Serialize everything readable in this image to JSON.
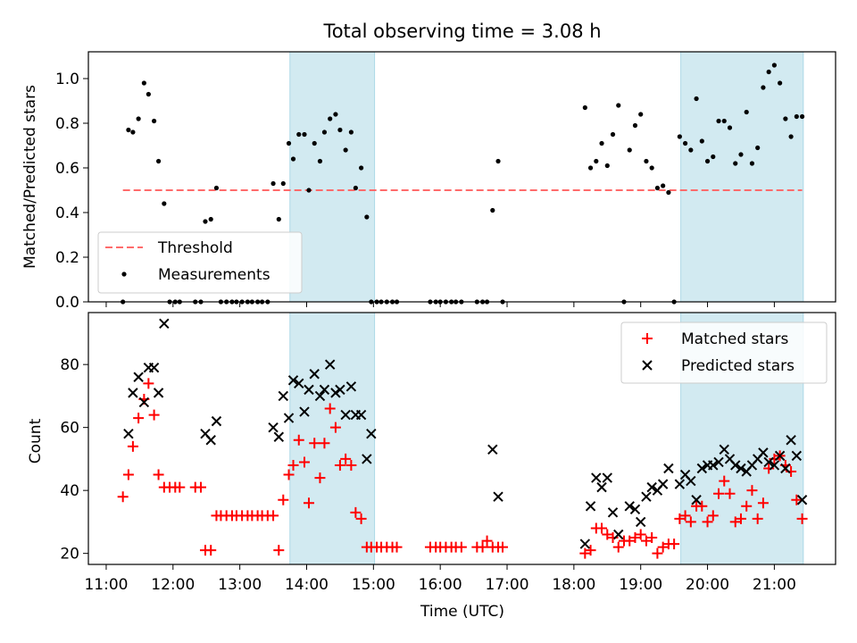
{
  "title": "Total observing time = 3.08 h",
  "colors": {
    "shade": "#add8e6",
    "threshold": "#ff6b6b",
    "measurement": "#000000",
    "matched": "#ff0000",
    "predicted": "#000000"
  },
  "chart_data": [
    {
      "type": "scatter",
      "ylabel": "Matched/Predicted stars",
      "ylim": [
        0,
        1.12
      ],
      "yticks": [
        "0.0",
        "0.2",
        "0.4",
        "0.6",
        "0.8",
        "1.0"
      ],
      "legend_position": "lower-left",
      "threshold": {
        "name": "Threshold",
        "value": 0.5,
        "x_range": [
          "11:15",
          "21:25"
        ]
      },
      "shaded_intervals": [
        [
          "13:45",
          "15:01"
        ],
        [
          "19:36",
          "21:26"
        ]
      ],
      "series": [
        {
          "name": "Measurements",
          "x": [
            "11:15",
            "11:20",
            "11:24",
            "11:29",
            "11:34",
            "11:38",
            "11:43",
            "11:47",
            "11:52",
            "11:57",
            "12:02",
            "12:06",
            "12:20",
            "12:25",
            "12:29",
            "12:34",
            "12:39",
            "12:43",
            "12:48",
            "12:53",
            "12:57",
            "13:02",
            "13:07",
            "13:11",
            "13:16",
            "13:20",
            "13:25",
            "13:30",
            "13:35",
            "13:39",
            "13:44",
            "13:48",
            "13:53",
            "13:58",
            "14:02",
            "14:07",
            "14:12",
            "14:16",
            "14:21",
            "14:26",
            "14:30",
            "14:35",
            "14:40",
            "14:44",
            "14:49",
            "14:54",
            "14:58",
            "15:03",
            "15:07",
            "15:12",
            "15:17",
            "15:21",
            "15:51",
            "15:56",
            "16:00",
            "16:05",
            "16:10",
            "16:14",
            "16:19",
            "16:33",
            "16:38",
            "16:42",
            "16:47",
            "16:52",
            "16:56",
            "18:10",
            "18:15",
            "18:20",
            "18:25",
            "18:30",
            "18:35",
            "18:40",
            "18:45",
            "18:50",
            "18:55",
            "19:00",
            "19:05",
            "19:10",
            "19:15",
            "19:20",
            "19:25",
            "19:30",
            "19:35",
            "19:40",
            "19:45",
            "19:50",
            "19:55",
            "20:00",
            "20:05",
            "20:10",
            "20:15",
            "20:20",
            "20:25",
            "20:30",
            "20:35",
            "20:40",
            "20:45",
            "20:50",
            "20:55",
            "21:00",
            "21:05",
            "21:10",
            "21:15",
            "21:20",
            "21:25"
          ],
          "y": [
            0.0,
            0.77,
            0.76,
            0.82,
            0.98,
            0.93,
            0.81,
            0.63,
            0.44,
            0.0,
            0.0,
            0.0,
            0.0,
            0.0,
            0.36,
            0.37,
            0.51,
            0.0,
            0.0,
            0.0,
            0.0,
            0.0,
            0.0,
            0.0,
            0.0,
            0.0,
            0.0,
            0.53,
            0.37,
            0.53,
            0.71,
            0.64,
            0.75,
            0.75,
            0.5,
            0.71,
            0.63,
            0.76,
            0.82,
            0.84,
            0.77,
            0.68,
            0.76,
            0.51,
            0.6,
            0.38,
            0.0,
            0.0,
            0.0,
            0.0,
            0.0,
            0.0,
            0.0,
            0.0,
            0.0,
            0.0,
            0.0,
            0.0,
            0.0,
            0.0,
            0.0,
            0.0,
            0.41,
            0.63,
            0.0,
            0.87,
            0.6,
            0.63,
            0.71,
            0.61,
            0.75,
            0.88,
            0.0,
            0.68,
            0.79,
            0.84,
            0.63,
            0.6,
            0.51,
            0.52,
            0.49,
            0.0,
            0.74,
            0.71,
            0.68,
            0.91,
            0.72,
            0.63,
            0.65,
            0.81,
            0.81,
            0.78,
            0.62,
            0.66,
            0.85,
            0.62,
            0.69,
            0.96,
            1.03,
            1.06,
            0.98,
            0.82,
            0.74,
            0.83,
            0.83
          ]
        }
      ]
    },
    {
      "type": "scatter",
      "ylabel": "Count",
      "xlabel": "Time (UTC)",
      "ylim": [
        16.5,
        96.5
      ],
      "yticks": [
        "20",
        "40",
        "60",
        "80"
      ],
      "xticks": [
        "11:00",
        "12:00",
        "13:00",
        "14:00",
        "15:00",
        "16:00",
        "17:00",
        "18:00",
        "19:00",
        "20:00",
        "21:00"
      ],
      "xlim": [
        "10:44",
        "21:55"
      ],
      "legend_position": "upper-right",
      "shaded_intervals": [
        [
          "13:45",
          "15:01"
        ],
        [
          "19:36",
          "21:26"
        ]
      ],
      "series": [
        {
          "name": "Matched stars",
          "x": [
            "11:15",
            "11:20",
            "11:24",
            "11:29",
            "11:34",
            "11:38",
            "11:43",
            "11:47",
            "11:52",
            "11:57",
            "12:02",
            "12:06",
            "12:20",
            "12:25",
            "12:29",
            "12:34",
            "12:39",
            "12:43",
            "12:48",
            "12:53",
            "12:57",
            "13:02",
            "13:07",
            "13:11",
            "13:16",
            "13:20",
            "13:25",
            "13:30",
            "13:35",
            "13:39",
            "13:44",
            "13:48",
            "13:53",
            "13:58",
            "14:02",
            "14:07",
            "14:12",
            "14:16",
            "14:21",
            "14:26",
            "14:30",
            "14:35",
            "14:40",
            "14:44",
            "14:49",
            "14:54",
            "14:58",
            "15:03",
            "15:07",
            "15:12",
            "15:17",
            "15:21",
            "15:51",
            "15:56",
            "16:00",
            "16:05",
            "16:10",
            "16:14",
            "16:19",
            "16:33",
            "16:38",
            "16:42",
            "16:47",
            "16:52",
            "16:56",
            "18:10",
            "18:15",
            "18:20",
            "18:25",
            "18:30",
            "18:35",
            "18:40",
            "18:45",
            "18:50",
            "18:55",
            "19:00",
            "19:05",
            "19:10",
            "19:15",
            "19:20",
            "19:25",
            "19:30",
            "19:35",
            "19:40",
            "19:45",
            "19:50",
            "19:55",
            "20:00",
            "20:05",
            "20:10",
            "20:15",
            "20:20",
            "20:25",
            "20:30",
            "20:35",
            "20:40",
            "20:45",
            "20:50",
            "20:55",
            "21:00",
            "21:05",
            "21:10",
            "21:15",
            "21:20",
            "21:25"
          ],
          "y": [
            38,
            45,
            54,
            63,
            69,
            74,
            64,
            45,
            41,
            41,
            41,
            41,
            41,
            41,
            21,
            21,
            32,
            32,
            32,
            32,
            32,
            32,
            32,
            32,
            32,
            32,
            32,
            32,
            21,
            37,
            45,
            48,
            56,
            49,
            36,
            55,
            44,
            55,
            66,
            60,
            48,
            50,
            48,
            33,
            31,
            22,
            22,
            22,
            22,
            22,
            22,
            22,
            22,
            22,
            22,
            22,
            22,
            22,
            22,
            22,
            22,
            24,
            22,
            22,
            22,
            20,
            21,
            28,
            28,
            26,
            25,
            22,
            24,
            24,
            25,
            26,
            24,
            25,
            20,
            22,
            23,
            23,
            31,
            32,
            30,
            35,
            35,
            30,
            32,
            39,
            43,
            39,
            30,
            31,
            35,
            40,
            31,
            36,
            47,
            50,
            51,
            48,
            46,
            37,
            31
          ]
        },
        {
          "name": "Predicted stars",
          "x": [
            "11:15",
            "11:20",
            "11:24",
            "11:29",
            "11:34",
            "11:38",
            "11:43",
            "11:47",
            "11:52",
            "11:57",
            "12:02",
            "12:06",
            "12:20",
            "12:25",
            "12:29",
            "12:34",
            "12:39",
            "12:43",
            "12:48",
            "12:53",
            "12:57",
            "13:02",
            "13:07",
            "13:11",
            "13:16",
            "13:20",
            "13:25",
            "13:30",
            "13:35",
            "13:39",
            "13:44",
            "13:48",
            "13:53",
            "13:58",
            "14:02",
            "14:07",
            "14:12",
            "14:16",
            "14:21",
            "14:26",
            "14:30",
            "14:35",
            "14:40",
            "14:44",
            "14:49",
            "14:54",
            "14:58",
            "15:03",
            "15:07",
            "15:12",
            "15:17",
            "15:21",
            "15:51",
            "15:56",
            "16:00",
            "16:05",
            "16:10",
            "16:14",
            "16:19",
            "16:33",
            "16:38",
            "16:42",
            "16:47",
            "16:52",
            "16:56",
            "18:10",
            "18:15",
            "18:20",
            "18:25",
            "18:30",
            "18:35",
            "18:40",
            "18:45",
            "18:50",
            "18:55",
            "19:00",
            "19:05",
            "19:10",
            "19:15",
            "19:20",
            "19:25",
            "19:30",
            "19:35",
            "19:40",
            "19:45",
            "19:50",
            "19:55",
            "20:00",
            "20:05",
            "20:10",
            "20:15",
            "20:20",
            "20:25",
            "20:30",
            "20:35",
            "20:40",
            "20:45",
            "20:50",
            "20:55",
            "21:00",
            "21:05",
            "21:10",
            "21:15",
            "21:20",
            "21:25"
          ],
          "y": [
            null,
            58,
            71,
            76,
            68,
            79,
            79,
            71,
            93,
            null,
            null,
            null,
            null,
            null,
            58,
            56,
            62,
            null,
            null,
            null,
            null,
            null,
            null,
            null,
            null,
            null,
            null,
            60,
            57,
            70,
            63,
            75,
            74,
            65,
            72,
            77,
            70,
            72,
            80,
            71,
            72,
            64,
            73,
            64,
            64,
            50,
            58,
            null,
            null,
            null,
            null,
            null,
            null,
            null,
            null,
            null,
            null,
            null,
            null,
            null,
            null,
            null,
            53,
            38,
            null,
            23,
            35,
            44,
            41,
            44,
            33,
            26,
            null,
            35,
            34,
            30,
            38,
            41,
            40,
            42,
            47,
            null,
            42,
            45,
            43,
            37,
            47,
            48,
            48,
            49,
            53,
            50,
            48,
            47,
            46,
            48,
            50,
            52,
            49,
            48,
            51,
            47,
            56,
            51,
            37
          ]
        }
      ]
    }
  ]
}
